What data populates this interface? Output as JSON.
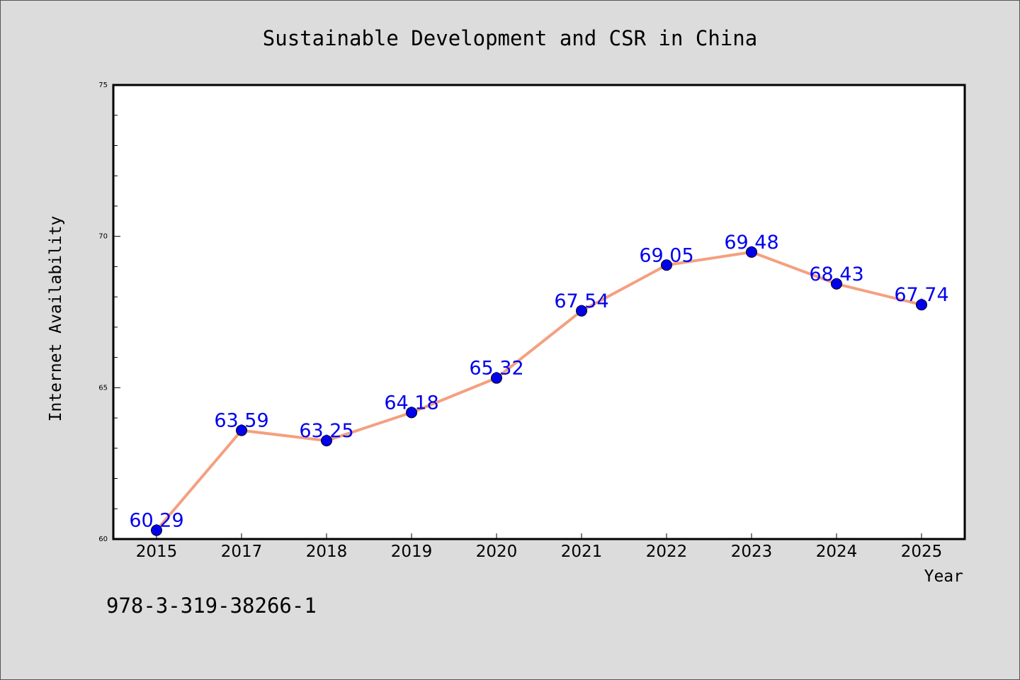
{
  "chart_data": {
    "type": "line",
    "title": "Sustainable Development and CSR in China",
    "xlabel": "Year",
    "ylabel": "Internet Availability",
    "x": [
      "2015",
      "2017",
      "2018",
      "2019",
      "2020",
      "2021",
      "2022",
      "2023",
      "2024",
      "2025"
    ],
    "series": [
      {
        "values": [
          60.29,
          63.59,
          63.25,
          64.18,
          65.32,
          67.54,
          69.05,
          69.48,
          68.43,
          67.74
        ],
        "labels": [
          "60.29",
          "63.59",
          "63.25",
          "64.18",
          "65.32",
          "67.54",
          "69.05",
          "69.48",
          "68.43",
          "67.74"
        ],
        "line_color": "#f4a07f",
        "marker_color": "#0000ee",
        "label_color": "#0000ee"
      }
    ],
    "ylim": [
      60,
      75
    ],
    "yticks": [
      "60",
      "65",
      "70",
      "75"
    ],
    "y_minor_step": 1,
    "grid": false,
    "legend": false
  },
  "footer": {
    "isbn": "978-3-319-38266-1"
  },
  "colors": {
    "background": "#dcdcdc",
    "plot_area": "#ffffff",
    "axis": "#000000"
  }
}
